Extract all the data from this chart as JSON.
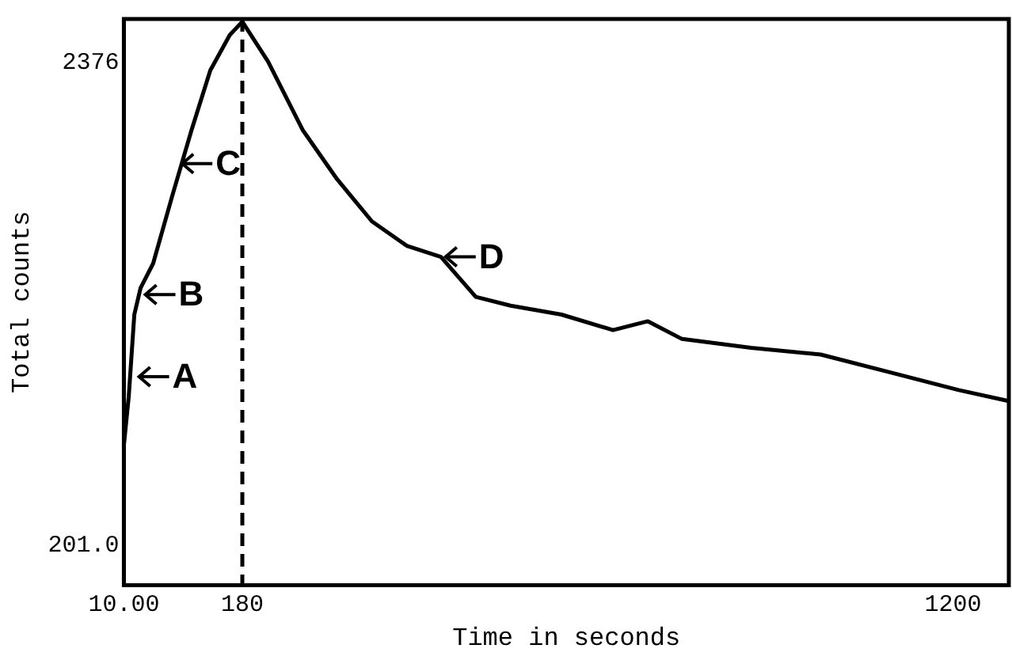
{
  "chart_data": {
    "type": "line",
    "xlabel": "Time in seconds",
    "ylabel": "Total counts",
    "x": [
      10,
      17,
      25,
      34,
      52,
      79,
      107,
      134,
      162,
      180,
      217,
      267,
      316,
      366,
      416,
      465,
      515,
      565,
      638,
      712,
      762,
      811,
      910,
      1010,
      1109,
      1208,
      1280
    ],
    "series": [
      {
        "color": "#000000",
        "values": [
          650,
          870,
          1240,
          1360,
          1470,
          1770,
          2070,
          2340,
          2500,
          2560,
          2380,
          2070,
          1850,
          1660,
          1550,
          1500,
          1320,
          1280,
          1240,
          1170,
          1210,
          1130,
          1090,
          1060,
          980,
          900,
          850
        ]
      }
    ],
    "xlim": [
      10,
      1280
    ],
    "xticks": [
      {
        "value": 10,
        "label": "10.00"
      },
      180,
      1200
    ],
    "ylim": [
      20,
      2572
    ],
    "yticks": [
      {
        "value": 201,
        "label": "201.0"
      },
      2376
    ],
    "ref_lines": [
      {
        "axis": "x",
        "value": 180,
        "line_style": "dashed",
        "color": "#000000"
      }
    ],
    "annotations": [
      {
        "text": "A",
        "x": 25,
        "y": 960
      },
      {
        "text": "B",
        "x": 34,
        "y": 1330
      },
      {
        "text": "C",
        "x": 87,
        "y": 1920
      },
      {
        "text": "D",
        "x": 465,
        "y": 1500
      }
    ],
    "grid": false,
    "legend": false,
    "marker": "none",
    "line_style": "solid"
  }
}
